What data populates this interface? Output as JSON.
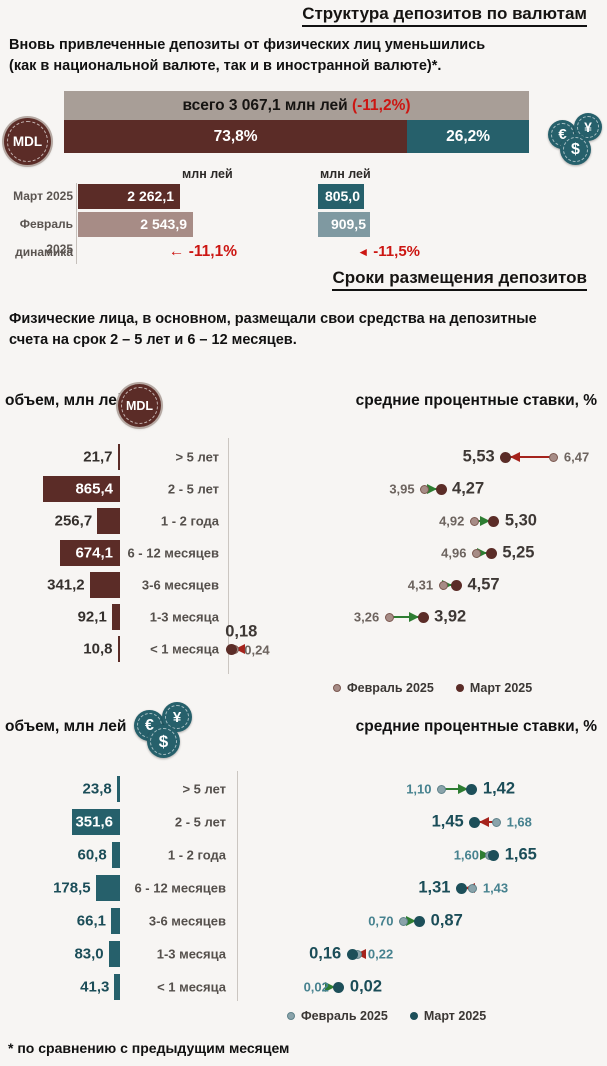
{
  "header": {
    "title": "Структура депозитов по валютам",
    "intro_line1": "Вновь привлеченные депозиты от физических лиц уменьшились",
    "intro_line2": "(как в национальной валюте, так и в иностранной валюте)*."
  },
  "icons": {
    "mdl_coin_label": "MDL",
    "fx_symbols": [
      "€",
      "¥",
      "$"
    ]
  },
  "terms_section": {
    "title": "Сроки размещения депозитов",
    "desc_line1": "Физические лица, в основном, размещали свои средства на депозитные",
    "desc_line2": "счета на срок 2 – 5 лет и 6 – 12 месяцев.",
    "volume_label": "объем, млн лей",
    "rates_label": "средние процентные ставки, %",
    "legend": {
      "feb": "Февраль 2025",
      "mar": "Март 2025"
    }
  },
  "footnote": "* по сравнению с предыдущим месяцем",
  "colors": {
    "background": "#f7f5f3",
    "maroon": "#5b2c27",
    "maroon_light": "#a78c86",
    "taupe": "#a89e97",
    "teal": "#26606b",
    "teal_light": "#7f99a1",
    "red": "#cc1612",
    "red_arrow": "#a5231c",
    "green": "#2e7d32",
    "label_gray": "#5a5450",
    "mdl_feb_text": "#6d645f",
    "mdl_mar_text": "#3e3835",
    "fx_feb_text": "#47828f",
    "fx_mar_text": "#1b4d58"
  },
  "chart_data": [
    {
      "type": "bar",
      "title": "Структура депозитов по валютам",
      "total_label": "всего 3 067,1 млн лей",
      "total_change_label": "(-11,2%)",
      "categories": [
        "национальная валюта (MDL)",
        "иностранная валюта"
      ],
      "values": [
        73.8,
        26.2
      ],
      "value_labels": [
        "73,8%",
        "26,2%"
      ]
    },
    {
      "type": "bar",
      "unit": "млн лей",
      "row_labels": [
        "Март 2025",
        "Февраль 2025",
        "динамика"
      ],
      "groups": [
        {
          "name": "MDL",
          "march": 2262.1,
          "march_label": "2 262,1",
          "feb": 2543.9,
          "feb_label": "2 543,9",
          "change_label": "-11,1%",
          "arrow": "←"
        },
        {
          "name": "иностранная валюта",
          "march": 805.0,
          "march_label": "805,0",
          "feb": 909.5,
          "feb_label": "909,5",
          "change_label": "-11,5%",
          "arrow": "◄"
        }
      ]
    },
    {
      "type": "bar+dumbbell",
      "currency": "MDL",
      "volume_axis_label": "объем, млн лей",
      "rates_axis_label": "средние процентные ставки, %",
      "categories": [
        "> 5 лет",
        "2 - 5 лет",
        "1 - 2 года",
        "6 - 12 месяцев",
        "3-6 месяцев",
        "1-3 месяца",
        "< 1 месяца"
      ],
      "volumes": [
        21.7,
        865.4,
        256.7,
        674.1,
        341.2,
        92.1,
        10.8
      ],
      "volume_labels": [
        "21,7",
        "865,4",
        "256,7",
        "674,1",
        "341,2",
        "92,1",
        "10,8"
      ],
      "series": [
        {
          "name": "Февраль 2025",
          "rates": [
            6.47,
            3.95,
            4.92,
            4.96,
            4.31,
            3.26,
            0.24
          ],
          "rate_labels": [
            "6,47",
            "3,95",
            "4,92",
            "4,96",
            "4,31",
            "3,26",
            "0,24"
          ]
        },
        {
          "name": "Март 2025",
          "rates": [
            5.53,
            4.27,
            5.3,
            5.25,
            4.57,
            3.92,
            0.18
          ],
          "rate_labels": [
            "5,53",
            "4,27",
            "5,30",
            "5,25",
            "4,57",
            "3,92",
            "0,18"
          ]
        }
      ],
      "label_layout": [
        "auto",
        "auto",
        "auto",
        "auto",
        "auto",
        "auto",
        "stacked"
      ]
    },
    {
      "type": "bar+dumbbell",
      "currency": "иностранная валюта",
      "volume_axis_label": "объем, млн лей",
      "rates_axis_label": "средние процентные ставки, %",
      "categories": [
        "> 5 лет",
        "2 - 5 лет",
        "1 - 2 года",
        "6 - 12 месяцев",
        "3-6 месяцев",
        "1-3 месяца",
        "< 1 месяца"
      ],
      "volumes": [
        23.8,
        351.6,
        60.8,
        178.5,
        66.1,
        83.0,
        41.3
      ],
      "volume_labels": [
        "23,8",
        "351,6",
        "60,8",
        "178,5",
        "66,1",
        "83,0",
        "41,3"
      ],
      "series": [
        {
          "name": "Февраль 2025",
          "rates": [
            1.1,
            1.68,
            1.6,
            1.43,
            0.7,
            0.22,
            0.02
          ],
          "rate_labels": [
            "1,10",
            "1,68",
            "1,60",
            "1,43",
            "0,70",
            "0,22",
            "0,02"
          ]
        },
        {
          "name": "Март 2025",
          "rates": [
            1.42,
            1.45,
            1.65,
            1.31,
            0.87,
            0.16,
            0.02
          ],
          "rate_labels": [
            "1,42",
            "1,45",
            "1,65",
            "1,31",
            "0,87",
            "0,16",
            "0,02"
          ]
        }
      ],
      "label_layout": [
        "auto",
        "auto",
        "auto",
        "auto",
        "auto",
        "auto",
        "auto"
      ]
    }
  ]
}
